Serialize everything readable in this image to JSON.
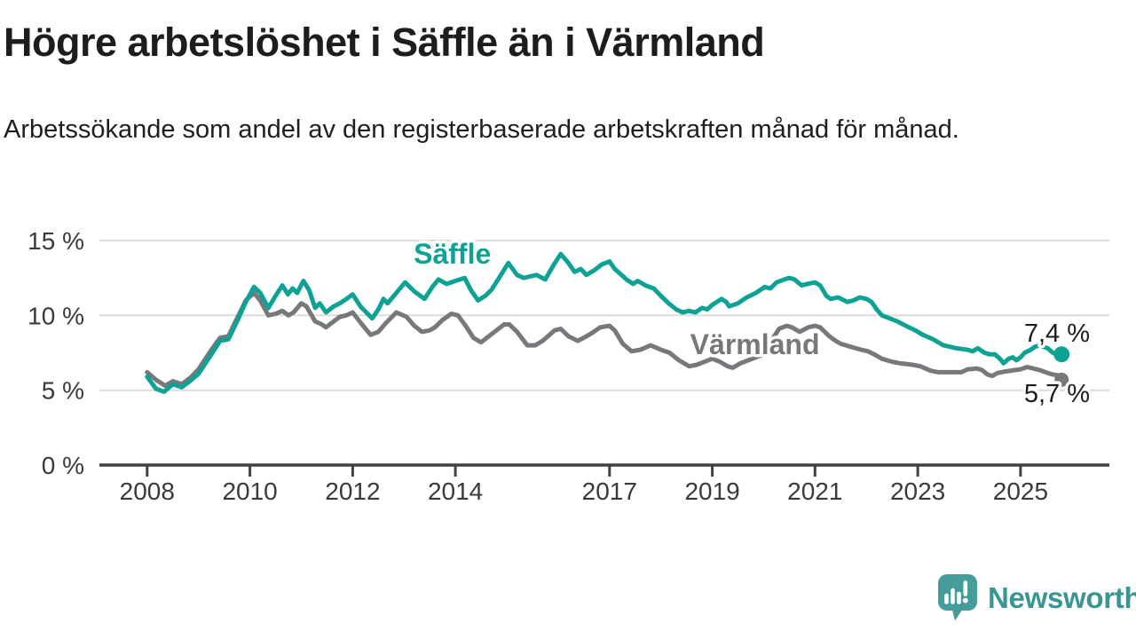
{
  "title": "Högre arbetslöshet i Säffle än i Värmland",
  "subtitle": "Arbetssökande som andel av den registerbaserade arbetskraften månad för månad.",
  "branding": {
    "logo_text": "Newsworthy",
    "logo_icon": "newsworthy-speech-bubble-bar-chart-icon",
    "logo_color": "#3a9693",
    "logo_icon_color": "#459d99"
  },
  "colors": {
    "saffle_line": "#0ea295",
    "varmland_line": "#77787b",
    "axis": "#414141",
    "gridline": "#dcdcdc",
    "tick_label": "#3a3a3a",
    "annotation_text": "#1d1d1b",
    "background": "#ffffff"
  },
  "chart_data": {
    "type": "line",
    "title": "Högre arbetslöshet i Säffle än i Värmland",
    "subtitle": "Arbetssökande som andel av den registerbaserade arbetskraften månad för månad.",
    "unit": "%",
    "xlabel": "",
    "ylabel": "",
    "grid": "horizontal",
    "legend_position": "inline-labels",
    "y_axis": {
      "range": [
        0,
        15
      ],
      "ticks": [
        0,
        5,
        10,
        15
      ],
      "tick_labels": [
        "0 %",
        "5 %",
        "10 %",
        "15 %"
      ]
    },
    "x_axis": {
      "range": [
        2007.07,
        2026.73
      ],
      "ticks": [
        2008,
        2010,
        2012,
        2014,
        2017,
        2019,
        2021,
        2023,
        2025
      ],
      "tick_labels": [
        "2008",
        "2010",
        "2012",
        "2014",
        "2017",
        "2019",
        "2021",
        "2023",
        "2025"
      ]
    },
    "series": [
      {
        "name": "Säffle",
        "color": "#0ea295",
        "line_width": 5,
        "end_value": 7.4,
        "end_label": "7,4 %",
        "end_dot_radius": 9,
        "label_pos": [
          2013.94,
          13.45
        ],
        "points": [
          [
            2008.0,
            5.9
          ],
          [
            2008.17,
            5.1
          ],
          [
            2008.33,
            4.9
          ],
          [
            2008.5,
            5.4
          ],
          [
            2008.67,
            5.2
          ],
          [
            2008.83,
            5.6
          ],
          [
            2009.0,
            6.1
          ],
          [
            2009.25,
            7.4
          ],
          [
            2009.42,
            8.3
          ],
          [
            2009.58,
            8.4
          ],
          [
            2009.75,
            9.6
          ],
          [
            2009.92,
            10.9
          ],
          [
            2010.08,
            11.9
          ],
          [
            2010.2,
            11.5
          ],
          [
            2010.36,
            10.5
          ],
          [
            2010.5,
            11.3
          ],
          [
            2010.63,
            12.0
          ],
          [
            2010.74,
            11.4
          ],
          [
            2010.83,
            11.8
          ],
          [
            2010.92,
            11.5
          ],
          [
            2011.04,
            12.3
          ],
          [
            2011.15,
            11.7
          ],
          [
            2011.27,
            10.5
          ],
          [
            2011.36,
            10.8
          ],
          [
            2011.48,
            10.2
          ],
          [
            2011.63,
            10.6
          ],
          [
            2011.75,
            10.8
          ],
          [
            2011.88,
            11.1
          ],
          [
            2012.0,
            11.4
          ],
          [
            2012.15,
            10.6
          ],
          [
            2012.38,
            9.8
          ],
          [
            2012.5,
            10.4
          ],
          [
            2012.6,
            11.1
          ],
          [
            2012.68,
            10.8
          ],
          [
            2012.85,
            11.5
          ],
          [
            2013.02,
            12.2
          ],
          [
            2013.2,
            11.6
          ],
          [
            2013.4,
            11.1
          ],
          [
            2013.55,
            11.9
          ],
          [
            2013.67,
            12.4
          ],
          [
            2013.83,
            12.1
          ],
          [
            2014.0,
            12.3
          ],
          [
            2014.18,
            12.5
          ],
          [
            2014.3,
            11.7
          ],
          [
            2014.44,
            11.0
          ],
          [
            2014.58,
            11.3
          ],
          [
            2014.7,
            11.7
          ],
          [
            2014.85,
            12.5
          ],
          [
            2015.03,
            13.5
          ],
          [
            2015.2,
            12.7
          ],
          [
            2015.33,
            12.5
          ],
          [
            2015.45,
            12.6
          ],
          [
            2015.58,
            12.7
          ],
          [
            2015.75,
            12.4
          ],
          [
            2015.9,
            13.3
          ],
          [
            2016.05,
            14.1
          ],
          [
            2016.2,
            13.5
          ],
          [
            2016.32,
            12.9
          ],
          [
            2016.44,
            13.1
          ],
          [
            2016.55,
            12.7
          ],
          [
            2016.7,
            13.0
          ],
          [
            2016.85,
            13.4
          ],
          [
            2017.0,
            13.6
          ],
          [
            2017.1,
            13.1
          ],
          [
            2017.2,
            12.8
          ],
          [
            2017.33,
            12.4
          ],
          [
            2017.46,
            12.1
          ],
          [
            2017.55,
            12.3
          ],
          [
            2017.7,
            12.0
          ],
          [
            2017.86,
            11.8
          ],
          [
            2018.0,
            11.3
          ],
          [
            2018.15,
            10.8
          ],
          [
            2018.3,
            10.4
          ],
          [
            2018.42,
            10.2
          ],
          [
            2018.55,
            10.3
          ],
          [
            2018.67,
            10.2
          ],
          [
            2018.8,
            10.5
          ],
          [
            2018.9,
            10.4
          ],
          [
            2019.0,
            10.7
          ],
          [
            2019.18,
            11.1
          ],
          [
            2019.27,
            10.9
          ],
          [
            2019.33,
            10.6
          ],
          [
            2019.5,
            10.8
          ],
          [
            2019.67,
            11.2
          ],
          [
            2019.85,
            11.5
          ],
          [
            2020.02,
            11.9
          ],
          [
            2020.13,
            11.8
          ],
          [
            2020.25,
            12.2
          ],
          [
            2020.4,
            12.4
          ],
          [
            2020.5,
            12.5
          ],
          [
            2020.6,
            12.4
          ],
          [
            2020.74,
            12.0
          ],
          [
            2020.85,
            12.1
          ],
          [
            2021.0,
            12.2
          ],
          [
            2021.1,
            12.0
          ],
          [
            2021.22,
            11.3
          ],
          [
            2021.3,
            11.1
          ],
          [
            2021.45,
            11.2
          ],
          [
            2021.63,
            10.9
          ],
          [
            2021.75,
            11.0
          ],
          [
            2021.87,
            11.2
          ],
          [
            2022.0,
            11.1
          ],
          [
            2022.1,
            10.9
          ],
          [
            2022.2,
            10.4
          ],
          [
            2022.3,
            10.0
          ],
          [
            2022.45,
            9.8
          ],
          [
            2022.6,
            9.6
          ],
          [
            2022.77,
            9.3
          ],
          [
            2022.95,
            9.0
          ],
          [
            2023.1,
            8.7
          ],
          [
            2023.3,
            8.4
          ],
          [
            2023.5,
            8.0
          ],
          [
            2023.64,
            7.9
          ],
          [
            2023.75,
            7.8
          ],
          [
            2023.97,
            7.7
          ],
          [
            2024.07,
            7.6
          ],
          [
            2024.17,
            7.8
          ],
          [
            2024.3,
            7.5
          ],
          [
            2024.4,
            7.4
          ],
          [
            2024.5,
            7.4
          ],
          [
            2024.6,
            7.1
          ],
          [
            2024.67,
            6.8
          ],
          [
            2024.77,
            7.1
          ],
          [
            2024.85,
            7.2
          ],
          [
            2024.92,
            7.0
          ],
          [
            2025.0,
            7.2
          ],
          [
            2025.08,
            7.5
          ],
          [
            2025.2,
            7.7
          ],
          [
            2025.28,
            7.9
          ],
          [
            2025.37,
            8.0
          ],
          [
            2025.45,
            7.9
          ],
          [
            2025.53,
            7.8
          ],
          [
            2025.63,
            7.5
          ],
          [
            2025.72,
            7.4
          ],
          [
            2025.8,
            7.4
          ]
        ]
      },
      {
        "name": "Värmland",
        "color": "#77787b",
        "line_width": 5,
        "end_value": 5.7,
        "end_label": "5,7 %",
        "end_dot_radius": 8,
        "label_pos": [
          2019.83,
          7.4
        ],
        "points": [
          [
            2008.0,
            6.2
          ],
          [
            2008.17,
            5.7
          ],
          [
            2008.35,
            5.3
          ],
          [
            2008.5,
            5.6
          ],
          [
            2008.67,
            5.4
          ],
          [
            2008.83,
            5.8
          ],
          [
            2009.0,
            6.4
          ],
          [
            2009.25,
            7.7
          ],
          [
            2009.42,
            8.5
          ],
          [
            2009.58,
            8.6
          ],
          [
            2009.75,
            9.8
          ],
          [
            2009.92,
            11.0
          ],
          [
            2010.08,
            11.5
          ],
          [
            2010.2,
            11.0
          ],
          [
            2010.36,
            10.0
          ],
          [
            2010.5,
            10.1
          ],
          [
            2010.63,
            10.3
          ],
          [
            2010.75,
            10.0
          ],
          [
            2010.85,
            10.2
          ],
          [
            2011.0,
            10.8
          ],
          [
            2011.1,
            10.6
          ],
          [
            2011.27,
            9.6
          ],
          [
            2011.4,
            9.4
          ],
          [
            2011.48,
            9.2
          ],
          [
            2011.63,
            9.6
          ],
          [
            2011.75,
            9.9
          ],
          [
            2011.88,
            10.0
          ],
          [
            2012.0,
            10.2
          ],
          [
            2012.18,
            9.4
          ],
          [
            2012.35,
            8.7
          ],
          [
            2012.5,
            8.9
          ],
          [
            2012.65,
            9.5
          ],
          [
            2012.85,
            10.2
          ],
          [
            2013.05,
            9.9
          ],
          [
            2013.2,
            9.3
          ],
          [
            2013.35,
            8.9
          ],
          [
            2013.5,
            9.0
          ],
          [
            2013.6,
            9.2
          ],
          [
            2013.75,
            9.7
          ],
          [
            2013.92,
            10.1
          ],
          [
            2014.05,
            10.0
          ],
          [
            2014.2,
            9.3
          ],
          [
            2014.35,
            8.5
          ],
          [
            2014.5,
            8.2
          ],
          [
            2014.65,
            8.6
          ],
          [
            2014.8,
            9.0
          ],
          [
            2014.95,
            9.4
          ],
          [
            2015.05,
            9.4
          ],
          [
            2015.2,
            8.9
          ],
          [
            2015.4,
            8.0
          ],
          [
            2015.55,
            8.0
          ],
          [
            2015.7,
            8.3
          ],
          [
            2015.93,
            9.0
          ],
          [
            2016.05,
            9.1
          ],
          [
            2016.2,
            8.6
          ],
          [
            2016.38,
            8.3
          ],
          [
            2016.5,
            8.5
          ],
          [
            2016.65,
            8.8
          ],
          [
            2016.82,
            9.2
          ],
          [
            2017.0,
            9.3
          ],
          [
            2017.1,
            9.0
          ],
          [
            2017.26,
            8.1
          ],
          [
            2017.43,
            7.6
          ],
          [
            2017.6,
            7.7
          ],
          [
            2017.8,
            8.0
          ],
          [
            2018.0,
            7.7
          ],
          [
            2018.17,
            7.5
          ],
          [
            2018.35,
            7.0
          ],
          [
            2018.55,
            6.6
          ],
          [
            2018.7,
            6.7
          ],
          [
            2018.85,
            6.9
          ],
          [
            2019.0,
            7.1
          ],
          [
            2019.15,
            6.9
          ],
          [
            2019.3,
            6.6
          ],
          [
            2019.4,
            6.5
          ],
          [
            2019.55,
            6.8
          ],
          [
            2019.7,
            7.0
          ],
          [
            2019.85,
            7.2
          ],
          [
            2020.0,
            7.4
          ],
          [
            2020.15,
            8.3
          ],
          [
            2020.3,
            9.1
          ],
          [
            2020.45,
            9.3
          ],
          [
            2020.55,
            9.2
          ],
          [
            2020.7,
            8.9
          ],
          [
            2020.87,
            9.2
          ],
          [
            2021.0,
            9.3
          ],
          [
            2021.1,
            9.2
          ],
          [
            2021.28,
            8.6
          ],
          [
            2021.4,
            8.3
          ],
          [
            2021.5,
            8.1
          ],
          [
            2021.7,
            7.9
          ],
          [
            2021.9,
            7.7
          ],
          [
            2022.03,
            7.6
          ],
          [
            2022.15,
            7.4
          ],
          [
            2022.3,
            7.1
          ],
          [
            2022.5,
            6.9
          ],
          [
            2022.65,
            6.8
          ],
          [
            2022.9,
            6.7
          ],
          [
            2023.05,
            6.6
          ],
          [
            2023.25,
            6.3
          ],
          [
            2023.4,
            6.2
          ],
          [
            2023.65,
            6.2
          ],
          [
            2023.85,
            6.2
          ],
          [
            2023.97,
            6.4
          ],
          [
            2024.15,
            6.45
          ],
          [
            2024.25,
            6.35
          ],
          [
            2024.36,
            6.05
          ],
          [
            2024.45,
            5.95
          ],
          [
            2024.55,
            6.15
          ],
          [
            2024.7,
            6.25
          ],
          [
            2024.9,
            6.35
          ],
          [
            2025.0,
            6.4
          ],
          [
            2025.13,
            6.55
          ],
          [
            2025.25,
            6.45
          ],
          [
            2025.37,
            6.35
          ],
          [
            2025.53,
            6.15
          ],
          [
            2025.63,
            6.05
          ],
          [
            2025.72,
            6.0
          ],
          [
            2025.8,
            5.7
          ]
        ]
      }
    ]
  }
}
